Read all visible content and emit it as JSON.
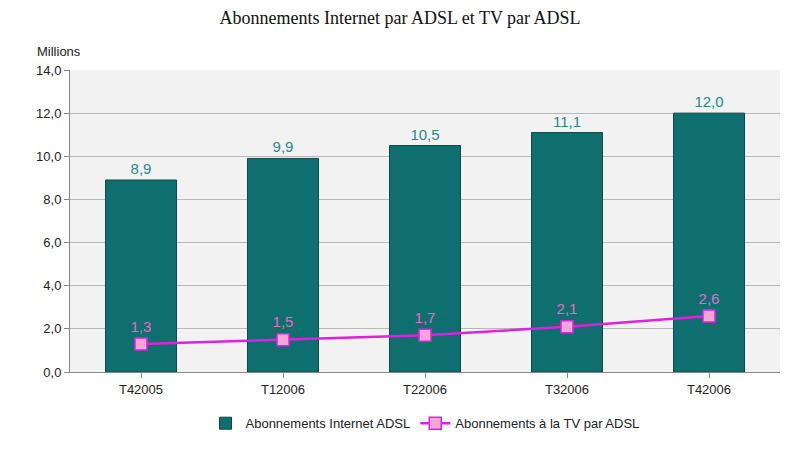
{
  "chart_data": {
    "type": "bar",
    "title": "Abonnements Internet par ADSL et TV par ADSL",
    "ylabel": "Millions",
    "categories": [
      "T42005",
      "T12006",
      "T22006",
      "T32006",
      "T42006"
    ],
    "series": [
      {
        "name": "Abonnements Internet ADSL",
        "type": "bar",
        "color": "#0f6e6e",
        "values": [
          8.9,
          9.9,
          10.5,
          11.1,
          12.0
        ],
        "value_labels": [
          "8,9",
          "9,9",
          "10,5",
          "11,1",
          "12,0"
        ]
      },
      {
        "name": "Abonnements à la TV par ADSL",
        "type": "line",
        "color": "#e020e0",
        "marker": "square",
        "values": [
          1.3,
          1.5,
          1.7,
          2.1,
          2.6
        ],
        "value_labels": [
          "1,3",
          "1,5",
          "1,7",
          "2,1",
          "2,6"
        ]
      }
    ],
    "ylim": [
      0,
      14
    ],
    "yticks": [
      {
        "value": 0,
        "label": "0,0"
      },
      {
        "value": 2,
        "label": "2,0"
      },
      {
        "value": 4,
        "label": "4,0"
      },
      {
        "value": 6,
        "label": "6,0"
      },
      {
        "value": 8,
        "label": "8,0"
      },
      {
        "value": 10,
        "label": "10,0"
      },
      {
        "value": 12,
        "label": "12,0"
      },
      {
        "value": 14,
        "label": "14,0"
      }
    ],
    "grid": true,
    "legend": "bottom",
    "data_labels": true
  }
}
